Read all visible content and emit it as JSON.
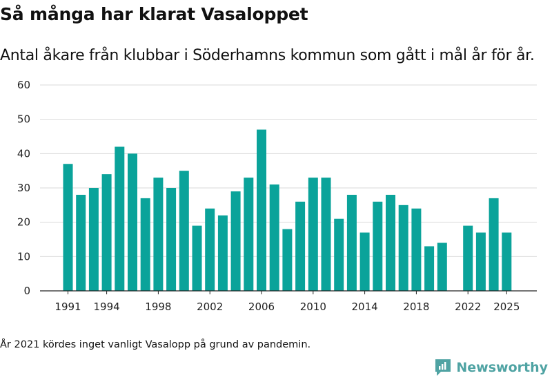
{
  "title": "Så många har klarat Vasaloppet",
  "subtitle": "Antal åkare från klubbar i Söderhamns kommun som gått i mål år för år.",
  "footnote": "År 2021 kördes inget vanligt Vasalopp på grund av pandemin.",
  "brand": {
    "name": "Newsworthy",
    "icon": "newsworthy-logo-icon"
  },
  "colors": {
    "bar": "#0aa39a",
    "grid": "#d9d9d9",
    "axis": "#222222",
    "brand": "#4fa3a3"
  },
  "chart_data": {
    "type": "bar",
    "title": "Så många har klarat Vasaloppet",
    "xlabel": "",
    "ylabel": "",
    "ylim": [
      0,
      60
    ],
    "yticks": [
      0,
      10,
      20,
      30,
      40,
      50,
      60
    ],
    "xticks": [
      1991,
      1994,
      1998,
      2002,
      2006,
      2010,
      2014,
      2018,
      2022,
      2025
    ],
    "grid": true,
    "categories": [
      1991,
      1992,
      1993,
      1994,
      1995,
      1996,
      1997,
      1998,
      1999,
      2000,
      2001,
      2002,
      2003,
      2004,
      2005,
      2006,
      2007,
      2008,
      2009,
      2010,
      2011,
      2012,
      2013,
      2014,
      2015,
      2016,
      2017,
      2018,
      2019,
      2020,
      2021,
      2022,
      2023,
      2024,
      2025
    ],
    "values": [
      37,
      28,
      30,
      34,
      42,
      40,
      27,
      33,
      30,
      35,
      19,
      24,
      22,
      29,
      33,
      47,
      31,
      18,
      26,
      33,
      33,
      21,
      28,
      17,
      26,
      28,
      25,
      24,
      13,
      14,
      null,
      19,
      17,
      27,
      17
    ]
  }
}
